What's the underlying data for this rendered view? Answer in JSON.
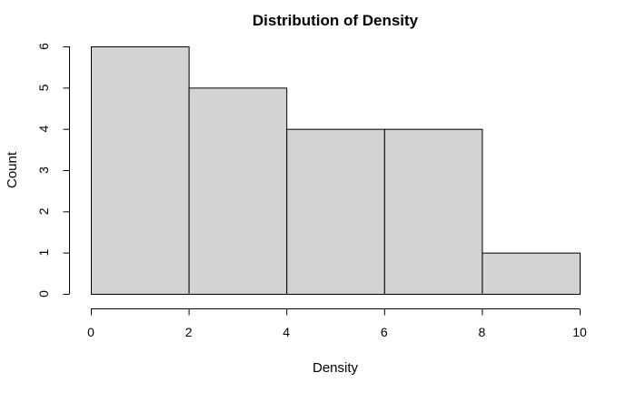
{
  "chart_data": {
    "type": "bar",
    "title": "Distribution of Density",
    "xlabel": "Density",
    "ylabel": "Count",
    "bins": [
      {
        "start": 0,
        "end": 2,
        "count": 6
      },
      {
        "start": 2,
        "end": 4,
        "count": 5
      },
      {
        "start": 4,
        "end": 6,
        "count": 4
      },
      {
        "start": 6,
        "end": 8,
        "count": 4
      },
      {
        "start": 8,
        "end": 10,
        "count": 1
      }
    ],
    "xlim": [
      0,
      10
    ],
    "ylim": [
      0,
      6
    ],
    "xticks": [
      0,
      2,
      4,
      6,
      8,
      10
    ],
    "yticks": [
      0,
      1,
      2,
      3,
      4,
      5,
      6
    ],
    "bar_color": "#d3d3d3",
    "grid": false
  }
}
